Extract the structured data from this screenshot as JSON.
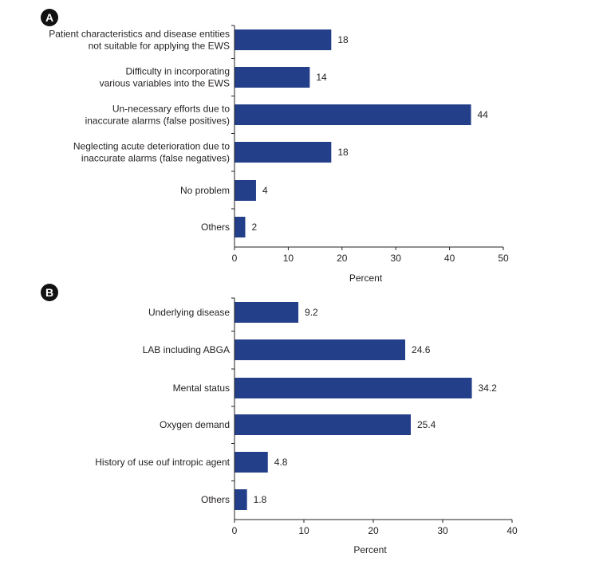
{
  "colors": {
    "bar": "#233f8a",
    "text": "#231f20",
    "axis": "#231f20",
    "badge": "#111111"
  },
  "chart_data": [
    {
      "panel": "A",
      "type": "bar",
      "orientation": "horizontal",
      "categories": [
        [
          "Patient characteristics and disease entities",
          "not suitable for applying the EWS"
        ],
        [
          "Difficulty in incorporating",
          "various variables into the EWS"
        ],
        [
          "Un-necessary efforts due to",
          "inaccurate alarms (false positives)"
        ],
        [
          "Neglecting acute deterioration due to",
          "inaccurate alarms (false negatives)"
        ],
        [
          "No problem"
        ],
        [
          "Others"
        ]
      ],
      "values": [
        18,
        14,
        44,
        18,
        4,
        2
      ],
      "value_labels": [
        "18",
        "14",
        "44",
        "18",
        "4",
        "2"
      ],
      "xlabel": "Percent",
      "xlim": [
        0,
        50
      ],
      "xticks": [
        0,
        10,
        20,
        30,
        40,
        50
      ],
      "grid": false
    },
    {
      "panel": "B",
      "type": "bar",
      "orientation": "horizontal",
      "categories": [
        [
          "Underlying disease"
        ],
        [
          "LAB including ABGA"
        ],
        [
          "Mental status"
        ],
        [
          "Oxygen demand"
        ],
        [
          "History of use ouf intropic agent"
        ],
        [
          "Others"
        ]
      ],
      "values": [
        9.2,
        24.6,
        34.2,
        25.4,
        4.8,
        1.8
      ],
      "value_labels": [
        "9.2",
        "24.6",
        "34.2",
        "25.4",
        "4.8",
        "1.8"
      ],
      "xlabel": "Percent",
      "xlim": [
        0,
        40
      ],
      "xticks": [
        0,
        10,
        20,
        30,
        40
      ],
      "grid": false
    }
  ]
}
